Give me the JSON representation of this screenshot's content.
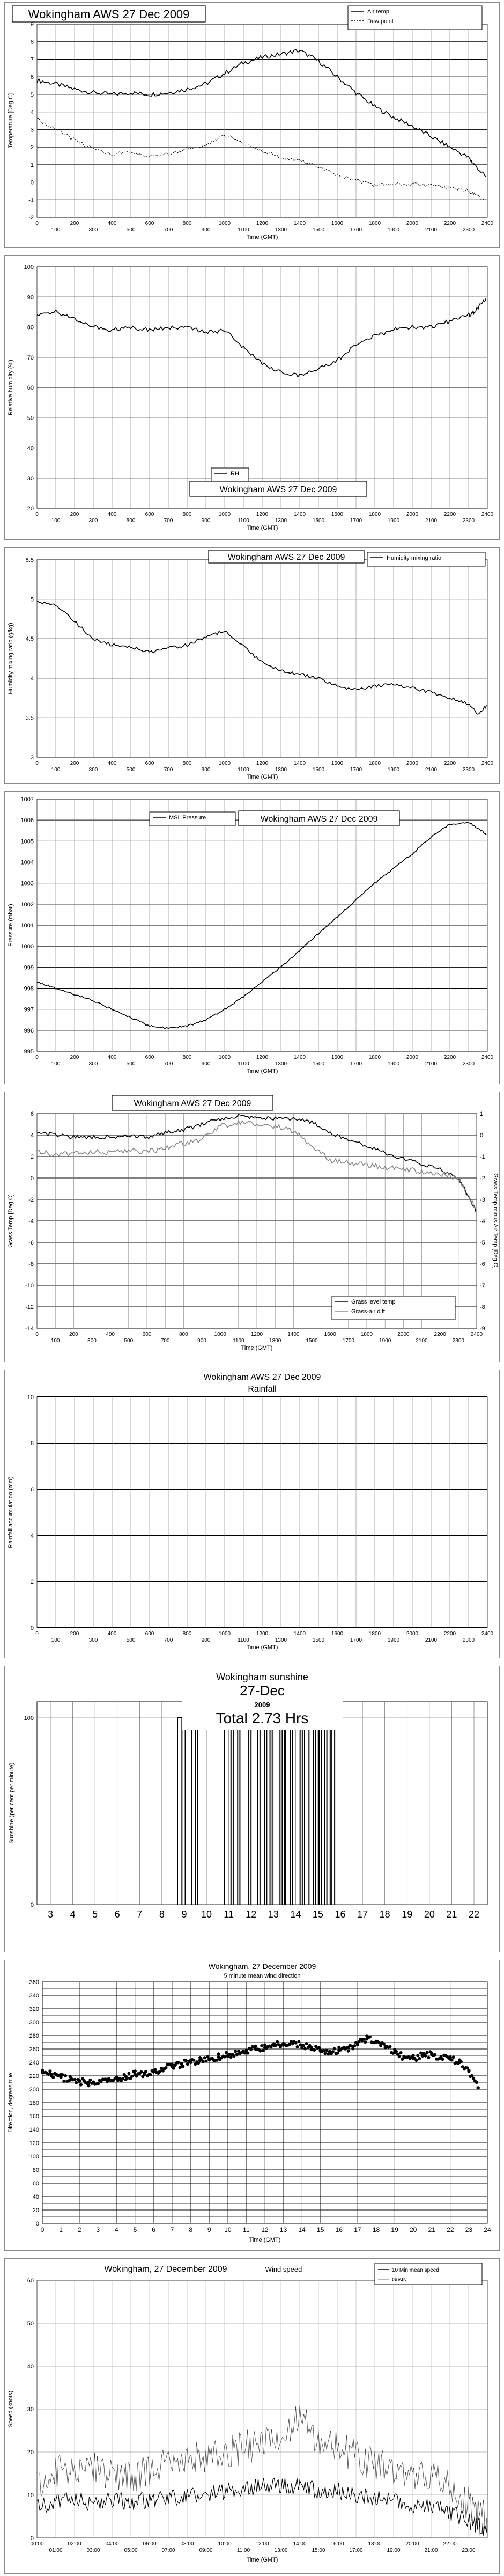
{
  "chart_data": [
    {
      "type": "line",
      "title": "Wokingham AWS 27 Dec 2009",
      "xlabel": "Time (GMT)",
      "ylabel": "Temperature [Deg C]",
      "ylim": [
        -2,
        9
      ],
      "xlim": [
        0,
        2400
      ],
      "xticks": [
        0,
        100,
        200,
        300,
        400,
        500,
        600,
        700,
        800,
        900,
        1000,
        1100,
        1200,
        1300,
        1400,
        1500,
        1600,
        1700,
        1800,
        1900,
        2000,
        2100,
        2200,
        2300,
        2400
      ],
      "yticks": [
        -2,
        -1,
        0,
        1,
        2,
        3,
        4,
        5,
        6,
        7,
        8,
        9
      ],
      "grid": true,
      "legend_position": "top-right",
      "series": [
        {
          "name": "Air temp",
          "color": "#000000",
          "style": "solid",
          "x": [
            0,
            100,
            200,
            300,
            400,
            500,
            600,
            700,
            800,
            900,
            1000,
            1100,
            1200,
            1300,
            1400,
            1500,
            1600,
            1700,
            1800,
            1900,
            2000,
            2100,
            2200,
            2300,
            2330,
            2400
          ],
          "values": [
            5.8,
            5.6,
            5.3,
            5.1,
            5.0,
            5.1,
            5.0,
            5.1,
            5.3,
            5.6,
            6.2,
            6.8,
            7.1,
            7.3,
            7.5,
            6.9,
            6.0,
            5.1,
            4.3,
            3.7,
            3.2,
            2.6,
            2.0,
            1.4,
            1.0,
            0.2
          ]
        },
        {
          "name": "Dew point",
          "color": "#000000",
          "style": "thin",
          "x": [
            0,
            100,
            200,
            300,
            400,
            500,
            600,
            700,
            800,
            900,
            1000,
            1100,
            1200,
            1300,
            1400,
            1500,
            1600,
            1700,
            1800,
            1900,
            2000,
            2100,
            2200,
            2300,
            2330,
            2400
          ],
          "values": [
            3.6,
            3.0,
            2.4,
            1.9,
            1.6,
            1.7,
            1.5,
            1.6,
            1.9,
            2.1,
            2.7,
            2.2,
            1.8,
            1.4,
            1.2,
            0.9,
            0.4,
            0.1,
            -0.2,
            -0.1,
            -0.1,
            -0.2,
            -0.3,
            -0.5,
            -0.7,
            -1.1
          ]
        }
      ]
    },
    {
      "type": "line",
      "title": "Wokingham AWS 27 Dec 2009",
      "xlabel": "Time (GMT)",
      "ylabel": "Relative humidity (%)",
      "ylim": [
        20,
        100
      ],
      "xlim": [
        0,
        2400
      ],
      "xticks": [
        0,
        100,
        200,
        300,
        400,
        500,
        600,
        700,
        800,
        900,
        1000,
        1100,
        1200,
        1300,
        1400,
        1500,
        1600,
        1700,
        1800,
        1900,
        2000,
        2100,
        2200,
        2300,
        2400
      ],
      "yticks": [
        20,
        30,
        40,
        50,
        60,
        70,
        80,
        90,
        100
      ],
      "grid": true,
      "legend_position": "bottom-center",
      "series": [
        {
          "name": "RH",
          "color": "#000000",
          "style": "solid",
          "x": [
            0,
            100,
            200,
            300,
            400,
            500,
            600,
            700,
            800,
            900,
            1000,
            1100,
            1200,
            1300,
            1400,
            1500,
            1600,
            1700,
            1800,
            1900,
            2000,
            2100,
            2200,
            2300,
            2330,
            2400
          ],
          "values": [
            84,
            85,
            83,
            80,
            79,
            80,
            79,
            80,
            80,
            78,
            79,
            73,
            68,
            65,
            64,
            66,
            69,
            74,
            77,
            79,
            80,
            80,
            82,
            84,
            85,
            90
          ]
        }
      ]
    },
    {
      "type": "line",
      "title": "Wokingham AWS 27 Dec 2009",
      "xlabel": "Time (GMT)",
      "ylabel": "Humidity mixing ratio (g/kg)",
      "ylim": [
        3,
        5.5
      ],
      "xlim": [
        0,
        2400
      ],
      "xticks": [
        0,
        100,
        200,
        300,
        400,
        500,
        600,
        700,
        800,
        900,
        1000,
        1100,
        1200,
        1300,
        1400,
        1500,
        1600,
        1700,
        1800,
        1900,
        2000,
        2100,
        2200,
        2300,
        2400
      ],
      "yticks": [
        3,
        3.5,
        4,
        4.5,
        5,
        5.5
      ],
      "grid": true,
      "legend_position": "top-right",
      "series": [
        {
          "name": "Humidity mixing ratio",
          "color": "#000000",
          "style": "solid",
          "x": [
            0,
            100,
            200,
            300,
            400,
            500,
            600,
            700,
            800,
            900,
            1000,
            1100,
            1200,
            1300,
            1400,
            1500,
            1600,
            1700,
            1800,
            1900,
            2000,
            2100,
            2200,
            2300,
            2350,
            2400
          ],
          "values": [
            4.98,
            4.92,
            4.72,
            4.5,
            4.42,
            4.4,
            4.33,
            4.38,
            4.42,
            4.52,
            4.6,
            4.4,
            4.2,
            4.1,
            4.05,
            4.0,
            3.9,
            3.85,
            3.9,
            3.92,
            3.88,
            3.82,
            3.75,
            3.68,
            3.55,
            3.65
          ]
        }
      ]
    },
    {
      "type": "line",
      "title": "Wokingham AWS 27 Dec 2009",
      "xlabel": "Time (GMT)",
      "ylabel": "Pressure (mbar)",
      "ylim": [
        995,
        1007
      ],
      "xlim": [
        0,
        2400
      ],
      "xticks": [
        0,
        100,
        200,
        300,
        400,
        500,
        600,
        700,
        800,
        900,
        1000,
        1100,
        1200,
        1300,
        1400,
        1500,
        1600,
        1700,
        1800,
        1900,
        2000,
        2100,
        2200,
        2300,
        2400
      ],
      "yticks": [
        995,
        996,
        997,
        998,
        999,
        1000,
        1001,
        1002,
        1003,
        1004,
        1005,
        1006,
        1007
      ],
      "grid": true,
      "legend_position": "top-left",
      "series": [
        {
          "name": "MSL Pressure",
          "color": "#000000",
          "style": "solid",
          "x": [
            0,
            100,
            200,
            300,
            400,
            500,
            600,
            700,
            800,
            900,
            1000,
            1100,
            1200,
            1300,
            1400,
            1500,
            1600,
            1700,
            1800,
            1900,
            2000,
            2100,
            2200,
            2300,
            2350,
            2400
          ],
          "values": [
            998.3,
            998.0,
            997.7,
            997.4,
            997.0,
            996.6,
            996.2,
            996.1,
            996.2,
            996.5,
            997.0,
            997.6,
            998.3,
            999.0,
            999.8,
            1000.6,
            1001.4,
            1002.2,
            1003.0,
            1003.7,
            1004.4,
            1005.2,
            1005.8,
            1005.9,
            1005.6,
            1005.3
          ]
        }
      ]
    },
    {
      "type": "line",
      "title": "Wokingham AWS 27 Dec 2009",
      "xlabel": "Time (GMT)",
      "ylabel": "Grass Temp [Deg C]",
      "ylabel_right": "Grass Temp minus Air Temp [Deg C]",
      "ylim": [
        -14,
        6
      ],
      "ylim_right": [
        -9,
        1
      ],
      "xlim": [
        0,
        2400
      ],
      "xticks": [
        0,
        100,
        200,
        300,
        400,
        500,
        600,
        700,
        800,
        900,
        1000,
        1100,
        1200,
        1300,
        1400,
        1500,
        1600,
        1700,
        1800,
        1900,
        2000,
        2100,
        2200,
        2300,
        2400
      ],
      "yticks": [
        -14,
        -12,
        -10,
        -8,
        -6,
        -4,
        -2,
        0,
        2,
        4,
        6
      ],
      "yticks_right": [
        -9,
        -8,
        -7,
        -6,
        -5,
        -4,
        -3,
        -2,
        -1,
        0,
        1
      ],
      "grid": true,
      "legend_position": "bottom-right",
      "series": [
        {
          "name": "Grass level temp",
          "color": "#000000",
          "style": "solid",
          "axis": "left",
          "x": [
            0,
            100,
            200,
            300,
            400,
            500,
            600,
            700,
            800,
            900,
            1000,
            1100,
            1200,
            1300,
            1400,
            1500,
            1600,
            1700,
            1800,
            1900,
            2000,
            2100,
            2200,
            2300,
            2350,
            2400
          ],
          "values": [
            4.2,
            4.0,
            3.8,
            3.8,
            3.8,
            4.0,
            3.8,
            4.2,
            4.5,
            5.0,
            5.5,
            5.8,
            5.6,
            5.5,
            5.5,
            5.2,
            4.2,
            3.6,
            3.0,
            2.3,
            1.8,
            1.3,
            0.8,
            0.0,
            -1.5,
            -3.2
          ]
        },
        {
          "name": "Grass-air diff",
          "color": "#888888",
          "style": "solid",
          "axis": "right",
          "x": [
            0,
            100,
            200,
            300,
            400,
            500,
            600,
            700,
            800,
            900,
            1000,
            1100,
            1200,
            1300,
            1400,
            1500,
            1600,
            1700,
            1800,
            1900,
            2000,
            2100,
            2200,
            2300,
            2350,
            2400
          ],
          "values": [
            -0.8,
            -0.9,
            -0.9,
            -0.8,
            -0.8,
            -0.7,
            -0.8,
            -0.6,
            -0.4,
            -0.2,
            0.4,
            0.6,
            0.5,
            0.4,
            0.2,
            -0.5,
            -1.2,
            -1.3,
            -1.4,
            -1.5,
            -1.6,
            -1.7,
            -1.8,
            -2.0,
            -2.8,
            -3.5
          ]
        }
      ]
    },
    {
      "type": "line",
      "title": "Wokingham AWS 27 Dec 2009",
      "subtitle": "Rainfall",
      "xlabel": "Time (GMT)",
      "ylabel": "Rainfall accumulation (mm)",
      "ylim": [
        0,
        10
      ],
      "xlim": [
        0,
        2400
      ],
      "xticks": [
        0,
        100,
        200,
        300,
        400,
        500,
        600,
        700,
        800,
        900,
        1000,
        1100,
        1200,
        1300,
        1400,
        1500,
        1600,
        1700,
        1800,
        1900,
        2000,
        2100,
        2200,
        2300,
        2400
      ],
      "yticks": [
        0,
        2,
        4,
        6,
        8,
        10
      ],
      "grid": true,
      "series": [
        {
          "color": "#000000",
          "style": "solid",
          "x": [
            0,
            2400
          ],
          "values": [
            0,
            0
          ]
        }
      ]
    },
    {
      "type": "bar",
      "title": "Wokingham sunshine",
      "subtitle": "27-Dec",
      "year": "2009",
      "total": "Total 2.73 Hrs",
      "ylabel": "Sunshine (per cent per minute)",
      "ylim": [
        0,
        100
      ],
      "xlim": [
        3,
        22
      ],
      "yticks": [
        0,
        100
      ],
      "xticks": [
        3,
        4,
        5,
        6,
        7,
        8,
        9,
        10,
        11,
        12,
        13,
        14,
        15,
        16,
        17,
        18,
        19,
        20,
        21,
        22
      ],
      "grid": true,
      "sunny_intervals": [
        [
          8.7,
          8.9
        ],
        [
          9.05,
          9.35
        ],
        [
          9.5,
          9.6
        ],
        [
          10.8,
          11.1
        ],
        [
          11.2,
          11.4
        ],
        [
          11.5,
          11.9
        ],
        [
          12.0,
          12.3
        ],
        [
          12.4,
          12.6
        ],
        [
          12.7,
          12.85
        ],
        [
          12.95,
          13.3
        ],
        [
          13.4,
          13.5
        ],
        [
          13.55,
          13.75
        ],
        [
          13.85,
          14.2
        ],
        [
          14.3,
          14.4
        ],
        [
          14.6,
          14.8
        ],
        [
          14.9,
          15.05
        ],
        [
          15.15,
          15.3
        ],
        [
          15.4,
          15.55
        ],
        [
          15.6,
          15.75
        ]
      ]
    },
    {
      "type": "scatter",
      "title": "Wokingham,  27 December 2009",
      "subtitle": "5 minute mean wind direction",
      "xlabel": "Time (GMT)",
      "ylabel": "Direction, degrees true",
      "ylim": [
        0,
        360
      ],
      "xlim": [
        0,
        24
      ],
      "yticks": [
        0,
        20,
        40,
        60,
        80,
        100,
        120,
        140,
        160,
        180,
        200,
        220,
        240,
        260,
        280,
        300,
        320,
        340,
        360
      ],
      "xticks": [
        0,
        1,
        2,
        3,
        4,
        5,
        6,
        7,
        8,
        9,
        10,
        11,
        12,
        13,
        14,
        15,
        16,
        17,
        18,
        19,
        20,
        21,
        22,
        23,
        24
      ],
      "grid": true,
      "x": [
        0.0,
        0.5,
        1.0,
        1.5,
        2.0,
        2.5,
        3.0,
        3.5,
        4.0,
        4.5,
        5.0,
        5.5,
        6.0,
        6.5,
        7.0,
        7.5,
        8.0,
        8.5,
        9.0,
        9.5,
        10.0,
        10.5,
        11.0,
        11.5,
        12.0,
        12.5,
        13.0,
        13.5,
        14.0,
        14.5,
        15.0,
        15.5,
        16.0,
        16.5,
        17.0,
        17.5,
        18.0,
        18.5,
        19.0,
        19.5,
        20.0,
        20.5,
        21.0,
        21.5,
        22.0,
        22.5,
        23.0,
        23.5
      ],
      "values": [
        228,
        222,
        218,
        214,
        212,
        210,
        208,
        212,
        216,
        219,
        222,
        224,
        226,
        230,
        234,
        238,
        240,
        243,
        245,
        248,
        250,
        252,
        255,
        260,
        262,
        265,
        268,
        270,
        265,
        262,
        258,
        256,
        258,
        262,
        268,
        275,
        270,
        262,
        255,
        248,
        246,
        250,
        252,
        248,
        245,
        240,
        228,
        202
      ]
    },
    {
      "type": "line",
      "title": "Wokingham,  27 December 2009",
      "subtitle": "Wind speed",
      "xlabel": "Time (GMT)",
      "ylabel": "Speed (knots)",
      "ylim": [
        0,
        60
      ],
      "xlim": [
        0,
        24
      ],
      "yticks": [
        0,
        10,
        20,
        30,
        40,
        50,
        60
      ],
      "xticks_top": [
        "00:00",
        "02:00",
        "04:00",
        "06:00",
        "08:00",
        "10:00",
        "12:00",
        "14:00",
        "16:00",
        "18:00",
        "20:00",
        "22:00"
      ],
      "xticks_bottom": [
        "01:00",
        "03:00",
        "05:00",
        "07:00",
        "09:00",
        "11:00",
        "13:00",
        "15:00",
        "17:00",
        "19:00",
        "21:00",
        "23:00"
      ],
      "grid": true,
      "legend_position": "top-right",
      "series": [
        {
          "name": "10 Min mean speed",
          "color": "#000000",
          "style": "solid",
          "x": [
            0,
            1,
            2,
            3,
            4,
            5,
            6,
            7,
            8,
            9,
            10,
            11,
            12,
            13,
            14,
            15,
            16,
            17,
            18,
            19,
            20,
            21,
            22,
            23,
            23.5,
            24
          ],
          "values": [
            7,
            8,
            9,
            8,
            9,
            8,
            9,
            9,
            10,
            10,
            11,
            11,
            12,
            12,
            12,
            11,
            11,
            10,
            9,
            9,
            8,
            7,
            6,
            4,
            3,
            2
          ]
        },
        {
          "name": "Gusts",
          "color": "#444444",
          "style": "thin",
          "x": [
            0,
            1,
            2,
            3,
            4,
            5,
            6,
            7,
            8,
            9,
            10,
            11,
            12,
            13,
            14,
            15,
            16,
            17,
            18,
            19,
            20,
            21,
            22,
            23,
            23.5,
            24
          ],
          "values": [
            13,
            15,
            17,
            16,
            15,
            14,
            16,
            17,
            18,
            19,
            20,
            21,
            22,
            24,
            28,
            22,
            21,
            19,
            17,
            16,
            15,
            14,
            12,
            8,
            6,
            5
          ]
        }
      ]
    }
  ]
}
